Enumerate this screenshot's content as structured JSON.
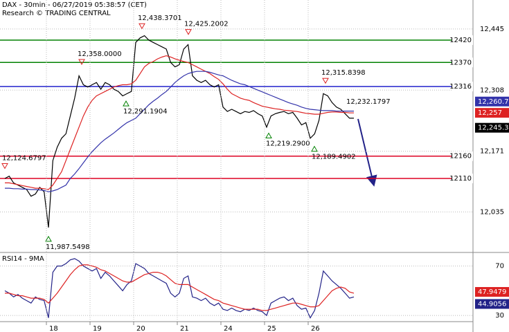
{
  "chart_data": [
    {
      "type": "line",
      "title": "DAX - 30min - 06/27/2019 05:38:57 (CET)",
      "subtitle": "Research © TRADING CENTRAL",
      "ylim": [
        11944,
        12510
      ],
      "yticks": [
        {
          "value": 12445,
          "label": "12,445"
        },
        {
          "value": 12308,
          "label": "12,308"
        },
        {
          "value": 12171,
          "label": "12,171"
        },
        {
          "value": 12035,
          "label": "12,035"
        }
      ],
      "grid": true,
      "series": [
        {
          "color": "#000000",
          "values": [
            12110,
            12115,
            12100,
            12095,
            12090,
            12085,
            12070,
            12075,
            12090,
            12080,
            12000,
            12150,
            12180,
            12200,
            12210,
            12250,
            12290,
            12340,
            12320,
            12315,
            12320,
            12325,
            12310,
            12325,
            12320,
            12310,
            12305,
            12295,
            12300,
            12305,
            12415,
            12425,
            12430,
            12420,
            12415,
            12410,
            12405,
            12400,
            12370,
            12360,
            12365,
            12400,
            12410,
            12340,
            12330,
            12325,
            12330,
            12320,
            12315,
            12320,
            12270,
            12260,
            12265,
            12260,
            12255,
            12260,
            12258,
            12262,
            12255,
            12250,
            12225,
            12250,
            12255,
            12258,
            12260,
            12255,
            12258,
            12245,
            12230,
            12235,
            12200,
            12210,
            12240,
            12300,
            12295,
            12280,
            12270,
            12265,
            12255,
            12245,
            12245
          ]
        },
        {
          "color": "#dd2222",
          "values": [
            12100,
            12100,
            12098,
            12096,
            12094,
            12092,
            12090,
            12088,
            12088,
            12087,
            12085,
            12095,
            12110,
            12125,
            12150,
            12175,
            12200,
            12225,
            12250,
            12270,
            12285,
            12295,
            12300,
            12305,
            12310,
            12315,
            12318,
            12320,
            12320,
            12322,
            12330,
            12345,
            12360,
            12368,
            12372,
            12378,
            12382,
            12385,
            12382,
            12378,
            12375,
            12372,
            12370,
            12365,
            12360,
            12355,
            12350,
            12345,
            12338,
            12332,
            12322,
            12310,
            12300,
            12295,
            12290,
            12287,
            12285,
            12280,
            12276,
            12272,
            12270,
            12268,
            12266,
            12265,
            12263,
            12262,
            12261,
            12260,
            12258,
            12256,
            12255,
            12254,
            12254,
            12256,
            12258,
            12259,
            12259,
            12258,
            12258,
            12257,
            12257
          ]
        },
        {
          "color": "#3333aa",
          "values": [
            12088,
            12088,
            12087,
            12087,
            12086,
            12086,
            12085,
            12085,
            12084,
            12083,
            12080,
            12082,
            12085,
            12090,
            12095,
            12110,
            12120,
            12132,
            12145,
            12158,
            12170,
            12180,
            12190,
            12198,
            12205,
            12212,
            12220,
            12228,
            12235,
            12240,
            12245,
            12255,
            12265,
            12275,
            12283,
            12290,
            12298,
            12305,
            12315,
            12325,
            12333,
            12340,
            12345,
            12348,
            12350,
            12350,
            12350,
            12348,
            12345,
            12342,
            12340,
            12335,
            12330,
            12326,
            12322,
            12320,
            12316,
            12312,
            12308,
            12304,
            12300,
            12296,
            12292,
            12288,
            12284,
            12280,
            12277,
            12274,
            12270,
            12267,
            12265,
            12264,
            12263,
            12262,
            12262,
            12262,
            12261,
            12261,
            12261,
            12261,
            12261
          ]
        }
      ],
      "levels": [
        {
          "value": 12420,
          "color": "#008000"
        },
        {
          "value": 12370,
          "color": "#008000"
        },
        {
          "value": 12316,
          "color": "#2222cc"
        },
        {
          "value": 12160,
          "color": "#dd0022"
        },
        {
          "value": 12110,
          "color": "#dd0022"
        }
      ],
      "highs": [
        {
          "value": 12438.3701,
          "label": "12,438.3701"
        },
        {
          "value": 12425.2002,
          "label": "12,425.2002"
        },
        {
          "value": 12358.0,
          "label": "12,358.0000"
        },
        {
          "value": 12315.8398,
          "label": "12,315.8398"
        },
        {
          "value": 12124.6797,
          "label": "12,124.6797"
        }
      ],
      "lows": [
        {
          "value": 12291.1904,
          "label": "12,291.1904"
        },
        {
          "value": 12219.29,
          "label": "12,219.2900"
        },
        {
          "value": 12189.4902,
          "label": "12,189.4902"
        },
        {
          "value": 11987.5498,
          "label": "11,987.5498"
        }
      ],
      "target": {
        "value": 12232.1797,
        "label": "12,232.1797"
      },
      "last_labels": [
        {
          "value": 12260.7,
          "label": "12,260.7",
          "color": "#3333aa"
        },
        {
          "value": 12257,
          "label": "12,257",
          "color": "#dd2222"
        },
        {
          "value": 12245.3,
          "label": "12,245.3",
          "color": "#000000"
        }
      ]
    },
    {
      "type": "line",
      "title": "RSI14 - 9MA",
      "ylim": [
        25,
        81
      ],
      "yticks": [
        70,
        30
      ],
      "grid": true,
      "categories": [
        null,
        null,
        null,
        null,
        null,
        null,
        null,
        null,
        null,
        null,
        "18",
        null,
        null,
        null,
        null,
        null,
        null,
        null,
        null,
        null,
        "19",
        null,
        null,
        null,
        null,
        null,
        null,
        null,
        null,
        null,
        "20",
        null,
        null,
        null,
        null,
        null,
        null,
        null,
        null,
        null,
        "21",
        null,
        null,
        null,
        null,
        null,
        null,
        null,
        null,
        null,
        "24",
        null,
        null,
        null,
        null,
        null,
        null,
        null,
        null,
        null,
        "25",
        null,
        null,
        null,
        null,
        null,
        null,
        null,
        null,
        null,
        "26",
        null,
        null,
        null,
        null,
        null,
        null,
        null,
        null,
        null,
        null
      ],
      "series": [
        {
          "color": "#222288",
          "values": [
            50,
            48,
            45,
            47,
            44,
            42,
            40,
            45,
            43,
            42,
            28,
            65,
            70,
            70,
            72,
            75,
            76,
            74,
            70,
            68,
            66,
            68,
            60,
            65,
            62,
            58,
            54,
            50,
            55,
            58,
            72,
            70,
            68,
            64,
            62,
            60,
            58,
            56,
            48,
            45,
            48,
            60,
            62,
            45,
            44,
            42,
            44,
            40,
            38,
            40,
            35,
            34,
            36,
            34,
            33,
            35,
            34,
            36,
            34,
            33,
            30,
            40,
            42,
            44,
            45,
            42,
            44,
            38,
            35,
            36,
            28,
            34,
            48,
            66,
            62,
            58,
            55,
            52,
            48,
            44,
            45
          ]
        },
        {
          "color": "#dd2222",
          "values": [
            48,
            48,
            47,
            46,
            46,
            45,
            44,
            44,
            44,
            43,
            40,
            44,
            48,
            53,
            58,
            63,
            67,
            70,
            71,
            71,
            70,
            69,
            67,
            66,
            64,
            62,
            60,
            58,
            57,
            57,
            59,
            61,
            63,
            64,
            65,
            65,
            64,
            62,
            59,
            56,
            55,
            55,
            55,
            53,
            51,
            49,
            47,
            45,
            43,
            42,
            40,
            39,
            38,
            37,
            36,
            35,
            35,
            35,
            35,
            34,
            34,
            35,
            36,
            37,
            38,
            39,
            40,
            40,
            39,
            38,
            37,
            37,
            38,
            42,
            46,
            50,
            52,
            53,
            52,
            49,
            48
          ]
        }
      ],
      "last_labels": [
        {
          "value": 47.9479,
          "label": "47.9479",
          "color": "#dd2222"
        },
        {
          "value": 44.9056,
          "label": "44.9056",
          "color": "#222288"
        }
      ]
    }
  ]
}
